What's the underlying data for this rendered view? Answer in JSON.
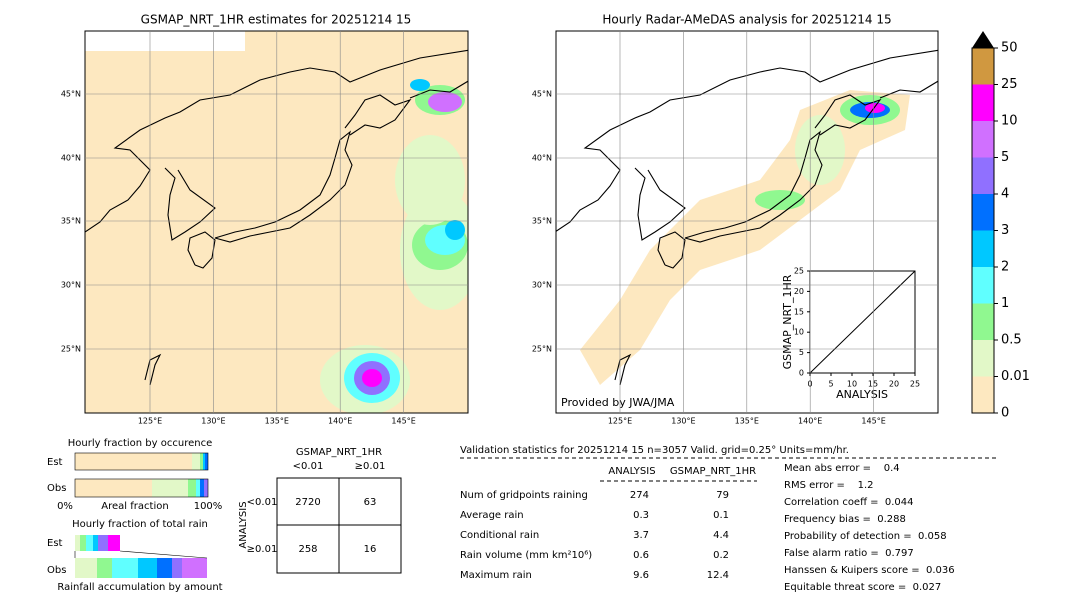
{
  "left_map": {
    "title": "GSMAP_NRT_1HR estimates for 20251214 15"
  },
  "right_map": {
    "title": "Hourly Radar-AMeDAS analysis for 20251214 15",
    "credit": "Provided by JWA/JMA"
  },
  "lat_labels": [
    "45°N",
    "40°N",
    "35°N",
    "30°N",
    "25°N"
  ],
  "lon_labels": [
    "125°E",
    "130°E",
    "135°E",
    "140°E",
    "145°E"
  ],
  "inset": {
    "xlabel": "ANALYSIS",
    "ylabel": "GSMAP_NRT_1HR",
    "ticks": [
      0,
      5,
      10,
      15,
      20,
      25
    ]
  },
  "colorbar": {
    "labels": [
      0,
      0.01,
      0.5,
      1,
      2,
      3,
      4,
      5,
      10,
      25,
      50
    ],
    "colors": [
      "#fde8c0",
      "#e2f8c8",
      "#90f890",
      "#60ffff",
      "#00c8ff",
      "#0070ff",
      "#9070ff",
      "#d070ff",
      "#ff00ff",
      "#d09840"
    ]
  },
  "occurrence": {
    "title": "Hourly fraction by occurence",
    "est": "Est",
    "obs": "Obs",
    "left": "0%",
    "middle": "Areal fraction",
    "right": "100%"
  },
  "total_rain": {
    "title": "Hourly fraction of total rain",
    "est": "Est",
    "obs": "Obs",
    "caption": "Rainfall accumulation by amount"
  },
  "contingency": {
    "col_title": "GSMAP_NRT_1HR",
    "cols": [
      "<0.01",
      "≥0.01"
    ],
    "row_title": "ANALYSIS",
    "rows": [
      "<0.01",
      "≥0.01"
    ],
    "cells": [
      [
        2720,
        63
      ],
      [
        258,
        16
      ]
    ]
  },
  "stats": {
    "header": "Validation statistics for 20251214 15  n=3057 Valid. grid=0.25° Units=mm/hr.",
    "columns": [
      "ANALYSIS",
      "GSMAP_NRT_1HR"
    ],
    "rows": [
      [
        "Num of gridpoints raining",
        274,
        79
      ],
      [
        "Average rain",
        0.3,
        0.1
      ],
      [
        "Conditional rain",
        3.7,
        4.4
      ],
      [
        "Rain volume (mm km²10⁶)",
        0.6,
        0.2
      ],
      [
        "Maximum rain",
        9.6,
        12.4
      ]
    ],
    "scores": [
      "Mean abs error =    0.4",
      "RMS error =    1.2",
      "Correlation coeff =  0.044",
      "Frequency bias =  0.288",
      "Probability of detection =  0.058",
      "False alarm ratio =  0.797",
      "Hanssen & Kuipers score =  0.036",
      "Equitable threat score =  0.027"
    ]
  }
}
